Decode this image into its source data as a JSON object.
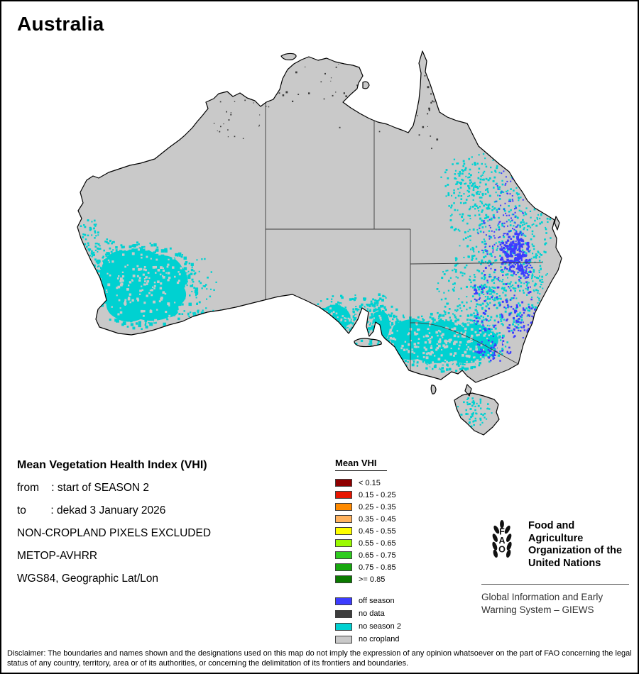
{
  "title": "Australia",
  "info": {
    "heading": "Mean Vegetation Health Index (VHI)",
    "lines": [
      "from    : start of SEASON 2",
      "to        : dekad 3 January 2026",
      "NON-CROPLAND PIXELS EXCLUDED",
      "METOP-AVHRR",
      "WGS84, Geographic Lat/Lon"
    ]
  },
  "legend": {
    "title": "Mean VHI",
    "vhi_classes": [
      {
        "label": "< 0.15",
        "color": "#8f0000"
      },
      {
        "label": "0.15 - 0.25",
        "color": "#e81600"
      },
      {
        "label": "0.25 - 0.35",
        "color": "#ff8a00"
      },
      {
        "label": "0.35 - 0.45",
        "color": "#ffb25e"
      },
      {
        "label": "0.45 - 0.55",
        "color": "#ffff00"
      },
      {
        "label": "0.55 - 0.65",
        "color": "#9bfa00"
      },
      {
        "label": "0.65 - 0.75",
        "color": "#2fcc1f"
      },
      {
        "label": "0.75 - 0.85",
        "color": "#17a80e"
      },
      {
        "label": ">= 0.85",
        "color": "#0b7a00"
      }
    ],
    "status_classes": [
      {
        "label": "off season",
        "color": "#3c3cff"
      },
      {
        "label": "no data",
        "color": "#3d3d3d"
      },
      {
        "label": "no season 2",
        "color": "#00d1d1"
      },
      {
        "label": "no cropland",
        "color": "#c9c9c9"
      }
    ]
  },
  "fao": {
    "logo_text": "FAO",
    "org_lines": [
      "Food and Agriculture",
      "Organization of the",
      "United Nations"
    ],
    "giews_lines": [
      "Global Information and Early",
      "Warning System – GIEWS"
    ]
  },
  "map": {
    "country": "Australia",
    "land_color": "#c9c9c9",
    "sea_color": "#ffffff",
    "no_season2_color": "#00d1d1",
    "off_season_color": "#3c3cff",
    "no_data_color": "#3d3d3d",
    "border_color": "#000000"
  },
  "disclaimer": "Disclaimer: The boundaries and names shown and the designations used on this map do not imply the expression of any opinion whatsoever on the part of FAO concerning the legal status of any country, territory, area or of its authorities, or concerning the delimitation of its frontiers and boundaries."
}
